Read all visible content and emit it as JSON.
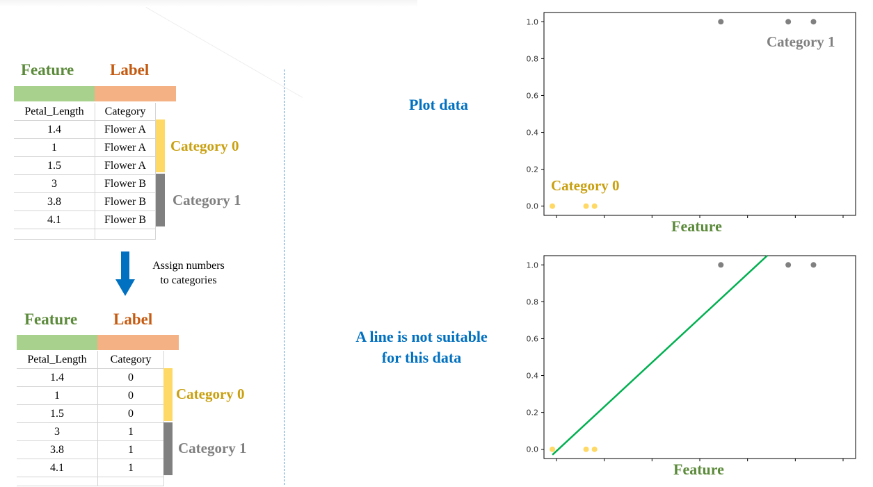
{
  "table_top": {
    "feature_header": "Feature",
    "label_header": "Label",
    "col1": "Petal_Length",
    "col2": "Category",
    "rows": [
      [
        "1.4",
        "Flower A"
      ],
      [
        "1",
        "Flower A"
      ],
      [
        "1.5",
        "Flower A"
      ],
      [
        "3",
        "Flower B"
      ],
      [
        "3.8",
        "Flower B"
      ],
      [
        "4.1",
        "Flower B"
      ]
    ],
    "cat0_label": "Category 0",
    "cat1_label": "Category 1"
  },
  "arrow_text": [
    "Assign numbers",
    "to categories"
  ],
  "table_bottom": {
    "feature_header": "Feature",
    "label_header": "Label",
    "col1": "Petal_Length",
    "col2": "Category",
    "rows": [
      [
        "1.4",
        "0"
      ],
      [
        "1",
        "0"
      ],
      [
        "1.5",
        "0"
      ],
      [
        "3",
        "1"
      ],
      [
        "3.8",
        "1"
      ],
      [
        "4.1",
        "1"
      ]
    ],
    "cat0_label": "Category 0",
    "cat1_label": "Category 1"
  },
  "mid_text_top": "Plot data",
  "mid_text_bottom": [
    "A line is not suitable",
    "for this data"
  ],
  "colors": {
    "feature_green": "#a9d18e",
    "label_orange": "#f4b183",
    "cat0_yellow": "#ffd966",
    "cat1_gray": "#808080",
    "fit_line": "#00b050",
    "title_blue": "#0070c0"
  },
  "chart_data": [
    {
      "type": "scatter",
      "title": "",
      "xlabel": "Feature",
      "ylabel": "",
      "ylim": [
        -0.05,
        1.05
      ],
      "yticks": [
        "0.0",
        "0.2",
        "0.4",
        "0.6",
        "0.8",
        "1.0"
      ],
      "series": [
        {
          "name": "Category 0",
          "x": [
            1.4,
            1.0,
            1.5
          ],
          "y": [
            0,
            0,
            0
          ],
          "color": "#ffd966"
        },
        {
          "name": "Category 1",
          "x": [
            3.0,
            3.8,
            4.1
          ],
          "y": [
            1,
            1,
            1
          ],
          "color": "#808080"
        }
      ],
      "xlim": [
        0.9,
        4.6
      ],
      "annotations": [
        "Category 1",
        "Category 0"
      ]
    },
    {
      "type": "scatter",
      "title": "",
      "xlabel": "Feature",
      "ylabel": "",
      "ylim": [
        -0.05,
        1.05
      ],
      "yticks": [
        "0.0",
        "0.2",
        "0.4",
        "0.6",
        "0.8",
        "1.0"
      ],
      "series": [
        {
          "name": "",
          "x": [
            1.4,
            1.0,
            1.5
          ],
          "y": [
            0,
            0,
            0
          ],
          "color": "#ffd966"
        },
        {
          "name": "",
          "x": [
            3.0,
            3.8,
            4.1
          ],
          "y": [
            1,
            1,
            1
          ],
          "color": "#808080"
        }
      ],
      "line": {
        "x": [
          1.0,
          3.55
        ],
        "y": [
          -0.03,
          1.05
        ],
        "color": "#00b050"
      },
      "xlim": [
        0.9,
        4.6
      ]
    }
  ]
}
